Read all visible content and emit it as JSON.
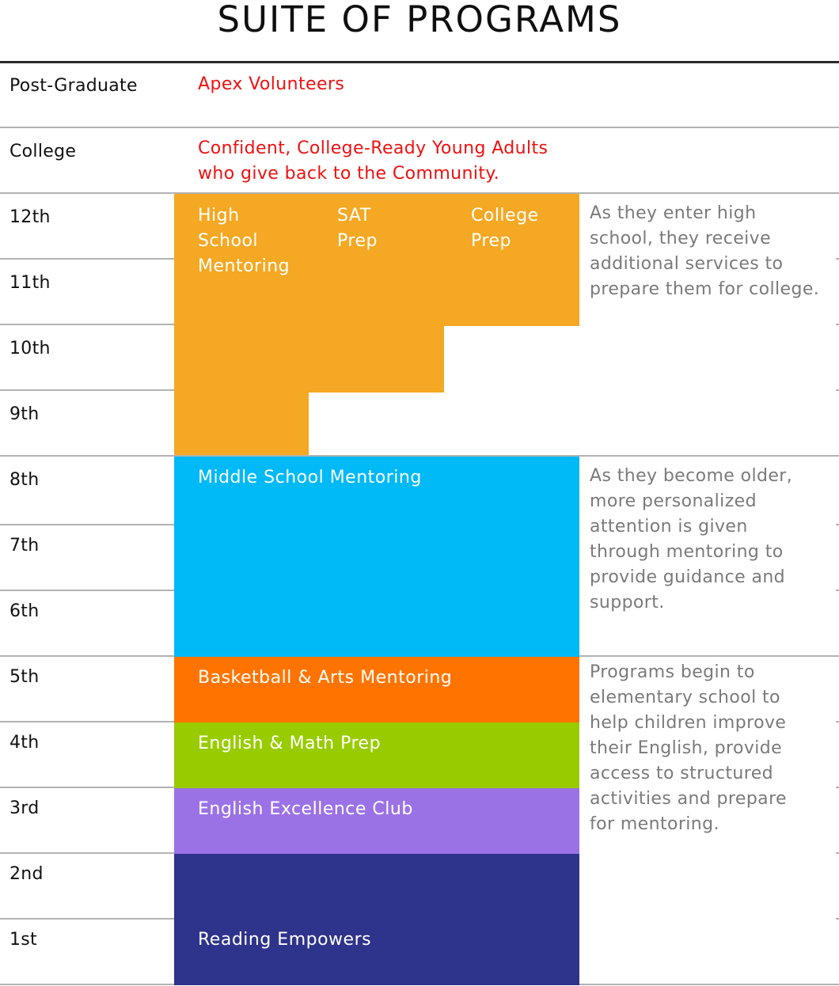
{
  "title": "SUITE OF PROGRAMS",
  "grades": {
    "post_graduate": "Post-Graduate",
    "college": "College",
    "g12": "12th",
    "g11": "11th",
    "g10": "10th",
    "g9": "9th",
    "g8": "8th",
    "g7": "7th",
    "g6": "6th",
    "g5": "5th",
    "g4": "4th",
    "g3": "3rd",
    "g2": "2nd",
    "g1": "1st"
  },
  "outcomes": {
    "post_graduate": "Apex Volunteers",
    "college_line1": "Confident, College-Ready Young Adults",
    "college_line2": "who give back to the Community."
  },
  "programs": {
    "hs_mentoring": [
      "High",
      "School",
      "Mentoring"
    ],
    "sat_prep": [
      "SAT",
      "Prep"
    ],
    "college_prep": [
      "College",
      "Prep"
    ],
    "middle_school": "Middle School Mentoring",
    "basketball_arts": "Basketball & Arts Mentoring",
    "english_math": "English & Math Prep",
    "english_excellence": "English Excellence Club",
    "reading": "Reading Empowers"
  },
  "notes": {
    "high_school": [
      "As they enter high",
      "school, they receive",
      "additional services to",
      "prepare them for college."
    ],
    "middle_school": [
      "As they become older,",
      "more personalized",
      "attention is given",
      "through mentoring to",
      "provide guidance and",
      "support."
    ],
    "elementary": [
      "Programs begin to",
      "elementary school to",
      "help children improve",
      "their English, provide",
      "access to structured",
      "activities and prepare",
      "for mentoring."
    ]
  },
  "colors": {
    "high_school": "#f5a823",
    "middle_school": "#00b9f7",
    "basketball": "#ff7400",
    "english_math": "#99cc00",
    "english_excellence": "#9b72e6",
    "reading": "#2e338b",
    "outcome_text": "#ee1111",
    "note_text": "#7a7a7a"
  }
}
